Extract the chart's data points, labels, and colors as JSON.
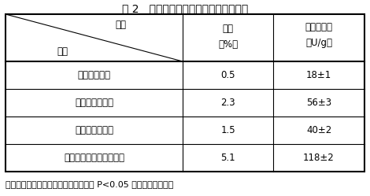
{
  "title": "表 2   农用微生物菌剂对秸秆腐熟的影响",
  "header_col1_top": "项目",
  "header_col1_bottom": "处理",
  "header_col2_line1": "失重",
  "header_col2_line2": "（%）",
  "header_col3_line1": "纤维素酶活",
  "header_col3_line2": "（U/g）",
  "rows": [
    [
      "未加菌剂处理",
      "0.5",
      "18±1"
    ],
    [
      "市售秸秆腐熟剂",
      "2.3",
      "56±3"
    ],
    [
      "哈茨木霉发酵物",
      "1.5",
      "40±2"
    ],
    [
      "本发明的农用微生物菌剂",
      "5.1",
      "118±2"
    ]
  ],
  "note": "注：该统计分析结果为各处理间数据在 P<0.05 水平上差异显著性",
  "bg_color": "#ffffff",
  "line_color": "#000000",
  "text_color": "#000000",
  "font_size": 8.5,
  "title_font_size": 10,
  "note_font_size": 8
}
